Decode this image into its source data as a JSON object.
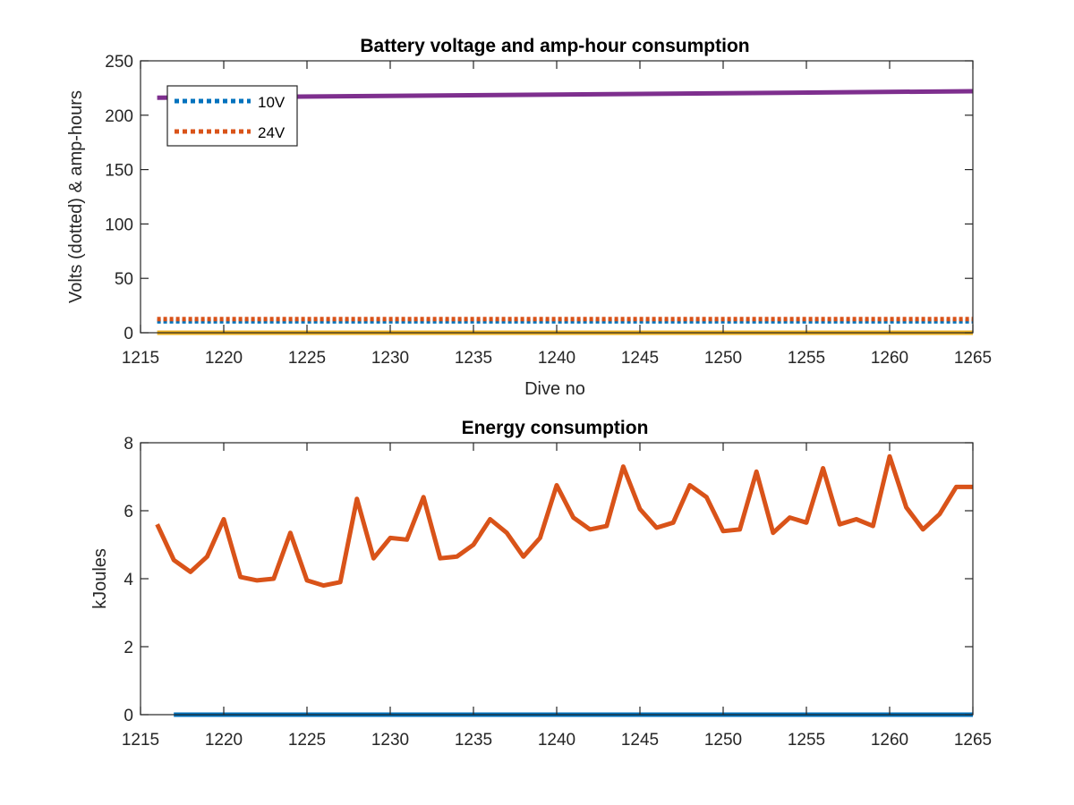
{
  "chart_data": [
    {
      "type": "line",
      "title": "Battery voltage and amp-hour consumption",
      "xlabel": "Dive no",
      "ylabel": "Volts (dotted) & amp-hours",
      "xlim": [
        1215,
        1265
      ],
      "ylim": [
        0,
        250
      ],
      "xticks": [
        "1215",
        "1220",
        "1225",
        "1230",
        "1235",
        "1240",
        "1245",
        "1250",
        "1255",
        "1260",
        "1265"
      ],
      "yticks": [
        "0",
        "50",
        "100",
        "150",
        "200",
        "250"
      ],
      "legend": {
        "position": "top-left",
        "entries": [
          "10V",
          "24V"
        ]
      },
      "series": [
        {
          "name": "10V",
          "style": "dotted",
          "color": "#0072BD",
          "x": [
            1216,
            1265
          ],
          "y": [
            10.5,
            10.5
          ]
        },
        {
          "name": "24V",
          "style": "dotted",
          "color": "#D95319",
          "x": [
            1216,
            1265
          ],
          "y": [
            12.5,
            12.5
          ]
        },
        {
          "style": "solid",
          "color": "#7E2F8E",
          "x": [
            1216,
            1265
          ],
          "y": [
            216,
            222
          ]
        },
        {
          "style": "solid",
          "color": "#EDB120",
          "x": [
            1216,
            1265
          ],
          "y": [
            0,
            0
          ]
        }
      ]
    },
    {
      "type": "line",
      "title": "Energy consumption",
      "xlabel": "",
      "ylabel": "kJoules",
      "xlim": [
        1215,
        1265
      ],
      "ylim": [
        0,
        8
      ],
      "xticks": [
        "1215",
        "1220",
        "1225",
        "1230",
        "1235",
        "1240",
        "1245",
        "1250",
        "1255",
        "1260",
        "1265"
      ],
      "yticks": [
        "0",
        "2",
        "4",
        "6",
        "8"
      ],
      "series": [
        {
          "color": "#D95319",
          "x": [
            1216,
            1217,
            1218,
            1219,
            1220,
            1221,
            1222,
            1223,
            1224,
            1225,
            1226,
            1227,
            1228,
            1229,
            1230,
            1231,
            1232,
            1233,
            1234,
            1235,
            1236,
            1237,
            1238,
            1239,
            1240,
            1241,
            1242,
            1243,
            1244,
            1245,
            1246,
            1247,
            1248,
            1249,
            1250,
            1251,
            1252,
            1253,
            1254,
            1255,
            1256,
            1257,
            1258,
            1259,
            1260,
            1261,
            1262,
            1263,
            1264,
            1265
          ],
          "y": [
            5.6,
            4.55,
            4.2,
            4.65,
            5.75,
            4.05,
            3.95,
            4.0,
            5.35,
            3.95,
            3.8,
            3.9,
            6.35,
            4.6,
            5.2,
            5.15,
            6.4,
            4.6,
            4.65,
            5.0,
            5.75,
            5.35,
            4.65,
            5.2,
            6.75,
            5.8,
            5.45,
            5.55,
            7.3,
            6.05,
            5.5,
            5.65,
            6.75,
            6.4,
            5.4,
            5.45,
            7.15,
            5.35,
            5.8,
            5.65,
            7.25,
            5.6,
            5.75,
            5.55,
            7.6,
            6.1,
            5.45,
            5.9,
            6.7,
            6.7
          ]
        },
        {
          "color": "#0072BD",
          "x": [
            1217,
            1265
          ],
          "y": [
            0,
            0
          ]
        }
      ]
    }
  ]
}
